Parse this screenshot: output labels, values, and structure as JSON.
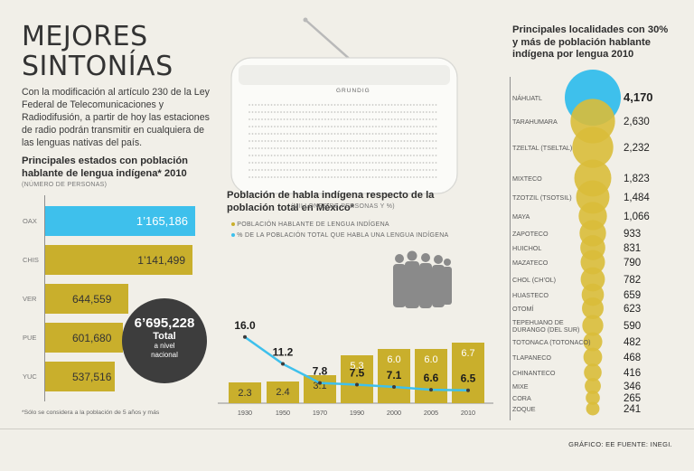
{
  "title": "MEJORES SINTONÍAS",
  "intro": "Con la modificación al artículo 230 de la Ley Federal de Telecomunicaciones y Radiodifusión, a partir de hoy las estaciones de radio podrán transmitir en cualquiera de las lenguas nativas del país.",
  "states": {
    "heading": "Principales estados con población hablante de lengua indígena* 2010",
    "unit": "(NÚMERO DE PERSONAS)",
    "footnote": "*Sólo se considera a la población de 5 años y más",
    "total_value": "6’695,228",
    "total_label": "Total",
    "total_sub1": "a nivel",
    "total_sub2": "nacional",
    "highlight_color": "#3ec0ec",
    "bar_color": "#c9af2c"
  },
  "radio": {
    "brand": "GRUNDIG"
  },
  "mid": {
    "heading": "Población de habla indígena respecto de la población total en México*",
    "unit": "(MILLONES DE PERSONAS Y %)",
    "legend_bars": "POBLACIÓN HABLANTE DE LENGUA INDÍGENA",
    "legend_line": "% DE LA POBLACIÓN TOTAL QUE HABLA UNA LENGUA INDÍGENA",
    "line_color": "#3ec0ec",
    "bar_color": "#c9af2c"
  },
  "locs": {
    "heading": "Principales localidades con 30% y más de población hablante indígena por lengua 2010",
    "highlight_color": "#3ec0ec",
    "bubble_color": "#d9bd3a"
  },
  "credit": "GRÁFICO: EE  FUENTE: INEGI.",
  "chart_data": [
    {
      "type": "bar",
      "title": "Principales estados con población hablante de lengua indígena* 2010",
      "ylabel": "(NÚMERO DE PERSONAS)",
      "categories": [
        "OAX",
        "CHIS",
        "VER",
        "PUE",
        "YUC"
      ],
      "values": [
        1165186,
        1141499,
        644559,
        601680,
        537516
      ],
      "value_labels": [
        "1’165,186",
        "1’141,499",
        "644,559",
        "601,680",
        "537,516"
      ],
      "orientation": "horizontal"
    },
    {
      "type": "bar",
      "title": "Población de habla indígena respecto de la población total en México*",
      "categories": [
        "1930",
        "1950",
        "1970",
        "1990",
        "2000",
        "2005",
        "2010"
      ],
      "series": [
        {
          "name": "POBLACIÓN HABLANTE DE LENGUA INDÍGENA",
          "type": "bar",
          "values": [
            2.3,
            2.4,
            3.1,
            5.3,
            6.0,
            6.0,
            6.7
          ]
        },
        {
          "name": "% DE LA POBLACIÓN TOTAL QUE HABLA UNA LENGUA INDÍGENA",
          "type": "line",
          "values": [
            16.0,
            11.2,
            7.8,
            7.5,
            7.1,
            6.6,
            6.5
          ]
        }
      ]
    },
    {
      "type": "bubble",
      "title": "Principales localidades con 30% y más de población hablante indígena por lengua 2010",
      "categories": [
        "NÁHUATL",
        "TARAHUMARA",
        "TZELTAL (TSELTAL)",
        "MIXTECO",
        "TZOTZIL (TSOTSIL)",
        "MAYA",
        "ZAPOTECO",
        "HUICHOL",
        "MAZATECO",
        "CHOL (CH’OL)",
        "HUASTECO",
        "OTOMÍ",
        "TEPEHUANO DE DURANGO (DEL SUR)",
        "TOTONACA (TOTONACO)",
        "TLAPANECO",
        "CHINANTECO",
        "MIXE",
        "CORA",
        "ZOQUE"
      ],
      "values": [
        4170,
        2630,
        2232,
        1823,
        1484,
        1066,
        933,
        831,
        790,
        782,
        659,
        623,
        590,
        482,
        468,
        416,
        346,
        265,
        241
      ],
      "value_labels": [
        "4,170",
        "2,630",
        "2,232",
        "1,823",
        "1,484",
        "1,066",
        "933",
        "831",
        "790",
        "782",
        "659",
        "623",
        "590",
        "482",
        "468",
        "416",
        "346",
        "265",
        "241"
      ]
    }
  ]
}
